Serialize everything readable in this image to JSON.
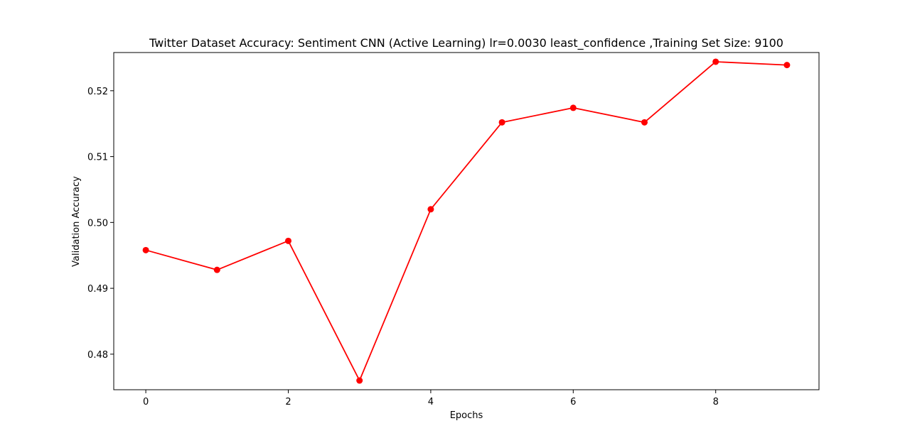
{
  "chart_data": {
    "type": "line",
    "title": "Twitter Dataset Accuracy: Sentiment CNN (Active Learning) lr=0.0030 least_confidence ,Training Set Size: 9100",
    "xlabel": "Epochs",
    "ylabel": "Validation Accuracy",
    "x": [
      0,
      1,
      2,
      3,
      4,
      5,
      6,
      7,
      8,
      9
    ],
    "series": [
      {
        "values": [
          0.4958,
          0.4928,
          0.4972,
          0.476,
          0.502,
          0.5152,
          0.5174,
          0.5152,
          0.5244,
          0.5239
        ],
        "color": "#ff0000",
        "marker": "circle"
      }
    ],
    "xticks": [
      0,
      2,
      4,
      6,
      8
    ],
    "xtick_labels": [
      "0",
      "2",
      "4",
      "6",
      "8"
    ],
    "yticks": [
      0.48,
      0.49,
      0.5,
      0.51,
      0.52
    ],
    "ytick_labels": [
      "0.48",
      "0.49",
      "0.50",
      "0.51",
      "0.52"
    ],
    "xlim": [
      -0.45,
      9.45
    ],
    "ylim": [
      0.4746,
      0.5258
    ],
    "grid": false,
    "legend": false
  }
}
